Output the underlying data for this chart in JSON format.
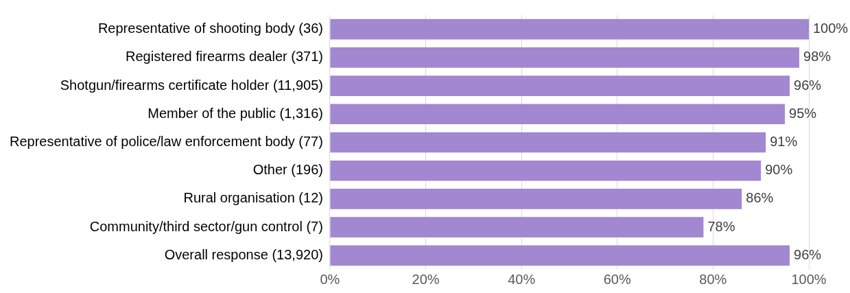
{
  "chart_data": {
    "type": "bar",
    "orientation": "horizontal",
    "categories": [
      "Representative of shooting body (36)",
      "Registered firearms dealer (371)",
      "Shotgun/firearms certificate holder (11,905)",
      "Member of the public (1,316)",
      "Representative of police/law enforcement body (77)",
      "Other (196)",
      "Rural organisation (12)",
      "Community/third sector/gun control (7)",
      "Overall response (13,920)"
    ],
    "values": [
      100,
      98,
      96,
      95,
      91,
      90,
      86,
      78,
      96
    ],
    "value_labels": [
      "100%",
      "98%",
      "96%",
      "95%",
      "91%",
      "90%",
      "86%",
      "78%",
      "96%"
    ],
    "color": "#a287d1",
    "xlim": [
      0,
      100
    ],
    "xticks": [
      {
        "value": 0,
        "label": "0%"
      },
      {
        "value": 20,
        "label": "20%"
      },
      {
        "value": 40,
        "label": "40%"
      },
      {
        "value": 60,
        "label": "60%"
      },
      {
        "value": 80,
        "label": "80%"
      },
      {
        "value": 100,
        "label": "100%"
      }
    ],
    "grid": "x",
    "legend": false
  }
}
